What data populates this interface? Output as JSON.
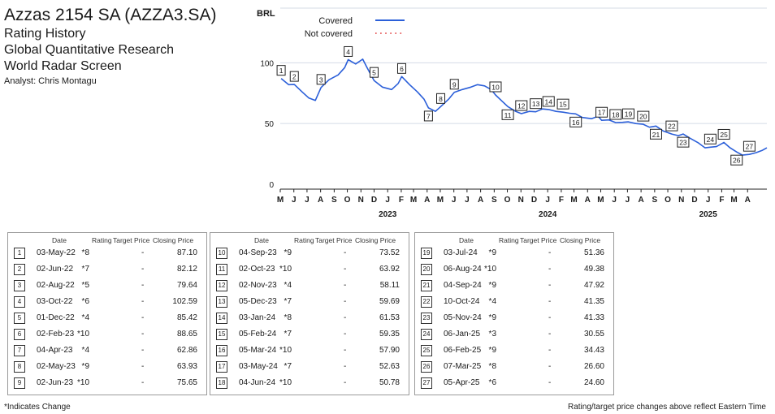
{
  "header": {
    "title": "Azzas 2154 SA (AZZA3.SA)",
    "lines": [
      "Rating History",
      "Global Quantitative Research",
      "World Radar Screen"
    ],
    "analyst": "Analyst: Chris Montagu"
  },
  "chart_data": {
    "type": "line",
    "ylabel": "BRL",
    "yticks": [
      0,
      50,
      100
    ],
    "ylim": [
      0,
      145
    ],
    "xlim": [
      "2022-05-01",
      "2025-05-15"
    ],
    "x_month_labels": [
      "M",
      "J",
      "J",
      "A",
      "S",
      "O",
      "N",
      "D",
      "J",
      "F",
      "M",
      "A",
      "M",
      "J",
      "J",
      "A",
      "S",
      "O",
      "N",
      "D",
      "J",
      "F",
      "M",
      "A",
      "M",
      "J",
      "J",
      "A",
      "S",
      "O",
      "N",
      "D",
      "J",
      "F",
      "M",
      "A"
    ],
    "year_labels": [
      {
        "label": "2023",
        "date": "2023-01-01"
      },
      {
        "label": "2024",
        "date": "2024-01-01"
      },
      {
        "label": "2025",
        "date": "2025-01-01"
      }
    ],
    "legend": [
      {
        "label": "Covered",
        "color": "#2b5fd9",
        "style": "solid"
      },
      {
        "label": "Not covered",
        "color": "#e03030",
        "style": "dotted"
      }
    ],
    "series": [
      {
        "name": "Covered",
        "color": "#2b5fd9",
        "points": [
          [
            "2022-05-03",
            87.1
          ],
          [
            "2022-05-20",
            82.0
          ],
          [
            "2022-06-02",
            82.12
          ],
          [
            "2022-06-20",
            76.0
          ],
          [
            "2022-07-05",
            71.0
          ],
          [
            "2022-07-20",
            69.0
          ],
          [
            "2022-08-02",
            79.64
          ],
          [
            "2022-08-20",
            86.0
          ],
          [
            "2022-09-10",
            90.0
          ],
          [
            "2022-09-25",
            96.0
          ],
          [
            "2022-10-03",
            102.59
          ],
          [
            "2022-10-20",
            99.0
          ],
          [
            "2022-11-05",
            103.0
          ],
          [
            "2022-11-15",
            96.0
          ],
          [
            "2022-12-01",
            85.42
          ],
          [
            "2022-12-20",
            80.0
          ],
          [
            "2023-01-10",
            78.0
          ],
          [
            "2023-01-25",
            83.0
          ],
          [
            "2023-02-02",
            88.65
          ],
          [
            "2023-02-20",
            82.0
          ],
          [
            "2023-03-10",
            76.0
          ],
          [
            "2023-03-25",
            70.0
          ],
          [
            "2023-04-04",
            62.86
          ],
          [
            "2023-04-20",
            60.0
          ],
          [
            "2023-05-02",
            63.93
          ],
          [
            "2023-05-20",
            70.0
          ],
          [
            "2023-06-02",
            75.65
          ],
          [
            "2023-06-20",
            78.0
          ],
          [
            "2023-07-10",
            80.0
          ],
          [
            "2023-07-25",
            82.0
          ],
          [
            "2023-08-10",
            81.0
          ],
          [
            "2023-08-25",
            78.0
          ],
          [
            "2023-09-04",
            73.52
          ],
          [
            "2023-09-20",
            68.0
          ],
          [
            "2023-10-02",
            63.92
          ],
          [
            "2023-10-20",
            60.0
          ],
          [
            "2023-11-02",
            58.11
          ],
          [
            "2023-11-20",
            60.0
          ],
          [
            "2023-12-05",
            59.69
          ],
          [
            "2023-12-20",
            62.0
          ],
          [
            "2024-01-03",
            61.53
          ],
          [
            "2024-01-20",
            60.0
          ],
          [
            "2024-02-05",
            59.35
          ],
          [
            "2024-02-20",
            58.5
          ],
          [
            "2024-03-05",
            57.9
          ],
          [
            "2024-03-20",
            55.0
          ],
          [
            "2024-04-10",
            54.0
          ],
          [
            "2024-04-25",
            56.0
          ],
          [
            "2024-05-03",
            52.63
          ],
          [
            "2024-05-20",
            53.0
          ],
          [
            "2024-06-04",
            50.78
          ],
          [
            "2024-06-20",
            51.0
          ],
          [
            "2024-07-03",
            51.36
          ],
          [
            "2024-07-20",
            50.0
          ],
          [
            "2024-08-06",
            49.38
          ],
          [
            "2024-08-20",
            47.0
          ],
          [
            "2024-09-04",
            47.92
          ],
          [
            "2024-09-20",
            44.0
          ],
          [
            "2024-10-10",
            41.35
          ],
          [
            "2024-10-25",
            40.0
          ],
          [
            "2024-11-05",
            41.33
          ],
          [
            "2024-11-20",
            38.0
          ],
          [
            "2024-12-10",
            34.0
          ],
          [
            "2024-12-25",
            30.0
          ],
          [
            "2025-01-06",
            30.55
          ],
          [
            "2025-01-20",
            31.0
          ],
          [
            "2025-02-06",
            34.43
          ],
          [
            "2025-02-20",
            30.0
          ],
          [
            "2025-03-07",
            26.6
          ],
          [
            "2025-03-20",
            24.0
          ],
          [
            "2025-04-05",
            24.6
          ],
          [
            "2025-04-20",
            26.0
          ],
          [
            "2025-05-05",
            28.0
          ],
          [
            "2025-05-15",
            30.0
          ]
        ]
      }
    ],
    "markers": [
      {
        "n": "1",
        "date": "2022-05-03",
        "y": 87.1
      },
      {
        "n": "2",
        "date": "2022-06-02",
        "y": 82.12
      },
      {
        "n": "3",
        "date": "2022-08-02",
        "y": 79.64
      },
      {
        "n": "4",
        "date": "2022-10-03",
        "y": 102.59
      },
      {
        "n": "5",
        "date": "2022-12-01",
        "y": 85.42
      },
      {
        "n": "6",
        "date": "2023-02-02",
        "y": 88.65
      },
      {
        "n": "7",
        "date": "2023-04-04",
        "y": 62.86
      },
      {
        "n": "8",
        "date": "2023-05-02",
        "y": 63.93
      },
      {
        "n": "9",
        "date": "2023-06-02",
        "y": 75.65
      },
      {
        "n": "10",
        "date": "2023-09-04",
        "y": 73.52
      },
      {
        "n": "11",
        "date": "2023-10-02",
        "y": 63.92
      },
      {
        "n": "12",
        "date": "2023-11-02",
        "y": 58.11
      },
      {
        "n": "13",
        "date": "2023-12-05",
        "y": 59.69
      },
      {
        "n": "14",
        "date": "2024-01-03",
        "y": 61.53
      },
      {
        "n": "15",
        "date": "2024-02-05",
        "y": 59.35
      },
      {
        "n": "16",
        "date": "2024-03-05",
        "y": 57.9
      },
      {
        "n": "17",
        "date": "2024-05-03",
        "y": 52.63
      },
      {
        "n": "18",
        "date": "2024-06-04",
        "y": 50.78
      },
      {
        "n": "19",
        "date": "2024-07-03",
        "y": 51.36
      },
      {
        "n": "20",
        "date": "2024-08-06",
        "y": 49.38
      },
      {
        "n": "21",
        "date": "2024-09-04",
        "y": 47.92
      },
      {
        "n": "22",
        "date": "2024-10-10",
        "y": 41.35
      },
      {
        "n": "23",
        "date": "2024-11-05",
        "y": 41.33
      },
      {
        "n": "24",
        "date": "2025-01-06",
        "y": 30.55
      },
      {
        "n": "25",
        "date": "2025-02-06",
        "y": 34.43
      },
      {
        "n": "26",
        "date": "2025-03-07",
        "y": 26.6
      },
      {
        "n": "27",
        "date": "2025-04-05",
        "y": 24.6
      }
    ]
  },
  "table": {
    "headers": {
      "date": "Date",
      "rating": "Rating",
      "target": "Target Price",
      "closing": "Closing Price"
    },
    "groups": [
      [
        {
          "n": "1",
          "date": "03-May-22",
          "rating": "*8",
          "target": "-",
          "closing": "87.10"
        },
        {
          "n": "2",
          "date": "02-Jun-22",
          "rating": "*7",
          "target": "-",
          "closing": "82.12"
        },
        {
          "n": "3",
          "date": "02-Aug-22",
          "rating": "*5",
          "target": "-",
          "closing": "79.64"
        },
        {
          "n": "4",
          "date": "03-Oct-22",
          "rating": "*6",
          "target": "-",
          "closing": "102.59"
        },
        {
          "n": "5",
          "date": "01-Dec-22",
          "rating": "*4",
          "target": "-",
          "closing": "85.42"
        },
        {
          "n": "6",
          "date": "02-Feb-23",
          "rating": "*10",
          "target": "-",
          "closing": "88.65"
        },
        {
          "n": "7",
          "date": "04-Apr-23",
          "rating": "*4",
          "target": "-",
          "closing": "62.86"
        },
        {
          "n": "8",
          "date": "02-May-23",
          "rating": "*9",
          "target": "-",
          "closing": "63.93"
        },
        {
          "n": "9",
          "date": "02-Jun-23",
          "rating": "*10",
          "target": "-",
          "closing": "75.65"
        }
      ],
      [
        {
          "n": "10",
          "date": "04-Sep-23",
          "rating": "*9",
          "target": "-",
          "closing": "73.52"
        },
        {
          "n": "11",
          "date": "02-Oct-23",
          "rating": "*10",
          "target": "-",
          "closing": "63.92"
        },
        {
          "n": "12",
          "date": "02-Nov-23",
          "rating": "*4",
          "target": "-",
          "closing": "58.11"
        },
        {
          "n": "13",
          "date": "05-Dec-23",
          "rating": "*7",
          "target": "-",
          "closing": "59.69"
        },
        {
          "n": "14",
          "date": "03-Jan-24",
          "rating": "*8",
          "target": "-",
          "closing": "61.53"
        },
        {
          "n": "15",
          "date": "05-Feb-24",
          "rating": "*7",
          "target": "-",
          "closing": "59.35"
        },
        {
          "n": "16",
          "date": "05-Mar-24",
          "rating": "*10",
          "target": "-",
          "closing": "57.90"
        },
        {
          "n": "17",
          "date": "03-May-24",
          "rating": "*7",
          "target": "-",
          "closing": "52.63"
        },
        {
          "n": "18",
          "date": "04-Jun-24",
          "rating": "*10",
          "target": "-",
          "closing": "50.78"
        }
      ],
      [
        {
          "n": "19",
          "date": "03-Jul-24",
          "rating": "*9",
          "target": "-",
          "closing": "51.36"
        },
        {
          "n": "20",
          "date": "06-Aug-24",
          "rating": "*10",
          "target": "-",
          "closing": "49.38"
        },
        {
          "n": "21",
          "date": "04-Sep-24",
          "rating": "*9",
          "target": "-",
          "closing": "47.92"
        },
        {
          "n": "22",
          "date": "10-Oct-24",
          "rating": "*4",
          "target": "-",
          "closing": "41.35"
        },
        {
          "n": "23",
          "date": "05-Nov-24",
          "rating": "*9",
          "target": "-",
          "closing": "41.33"
        },
        {
          "n": "24",
          "date": "06-Jan-25",
          "rating": "*3",
          "target": "-",
          "closing": "30.55"
        },
        {
          "n": "25",
          "date": "06-Feb-25",
          "rating": "*9",
          "target": "-",
          "closing": "34.43"
        },
        {
          "n": "26",
          "date": "07-Mar-25",
          "rating": "*8",
          "target": "-",
          "closing": "26.60"
        },
        {
          "n": "27",
          "date": "05-Apr-25",
          "rating": "*6",
          "target": "-",
          "closing": "24.60"
        }
      ]
    ]
  },
  "footer": {
    "left": "*Indicates Change",
    "right": "Rating/target price changes above reflect Eastern Time"
  }
}
